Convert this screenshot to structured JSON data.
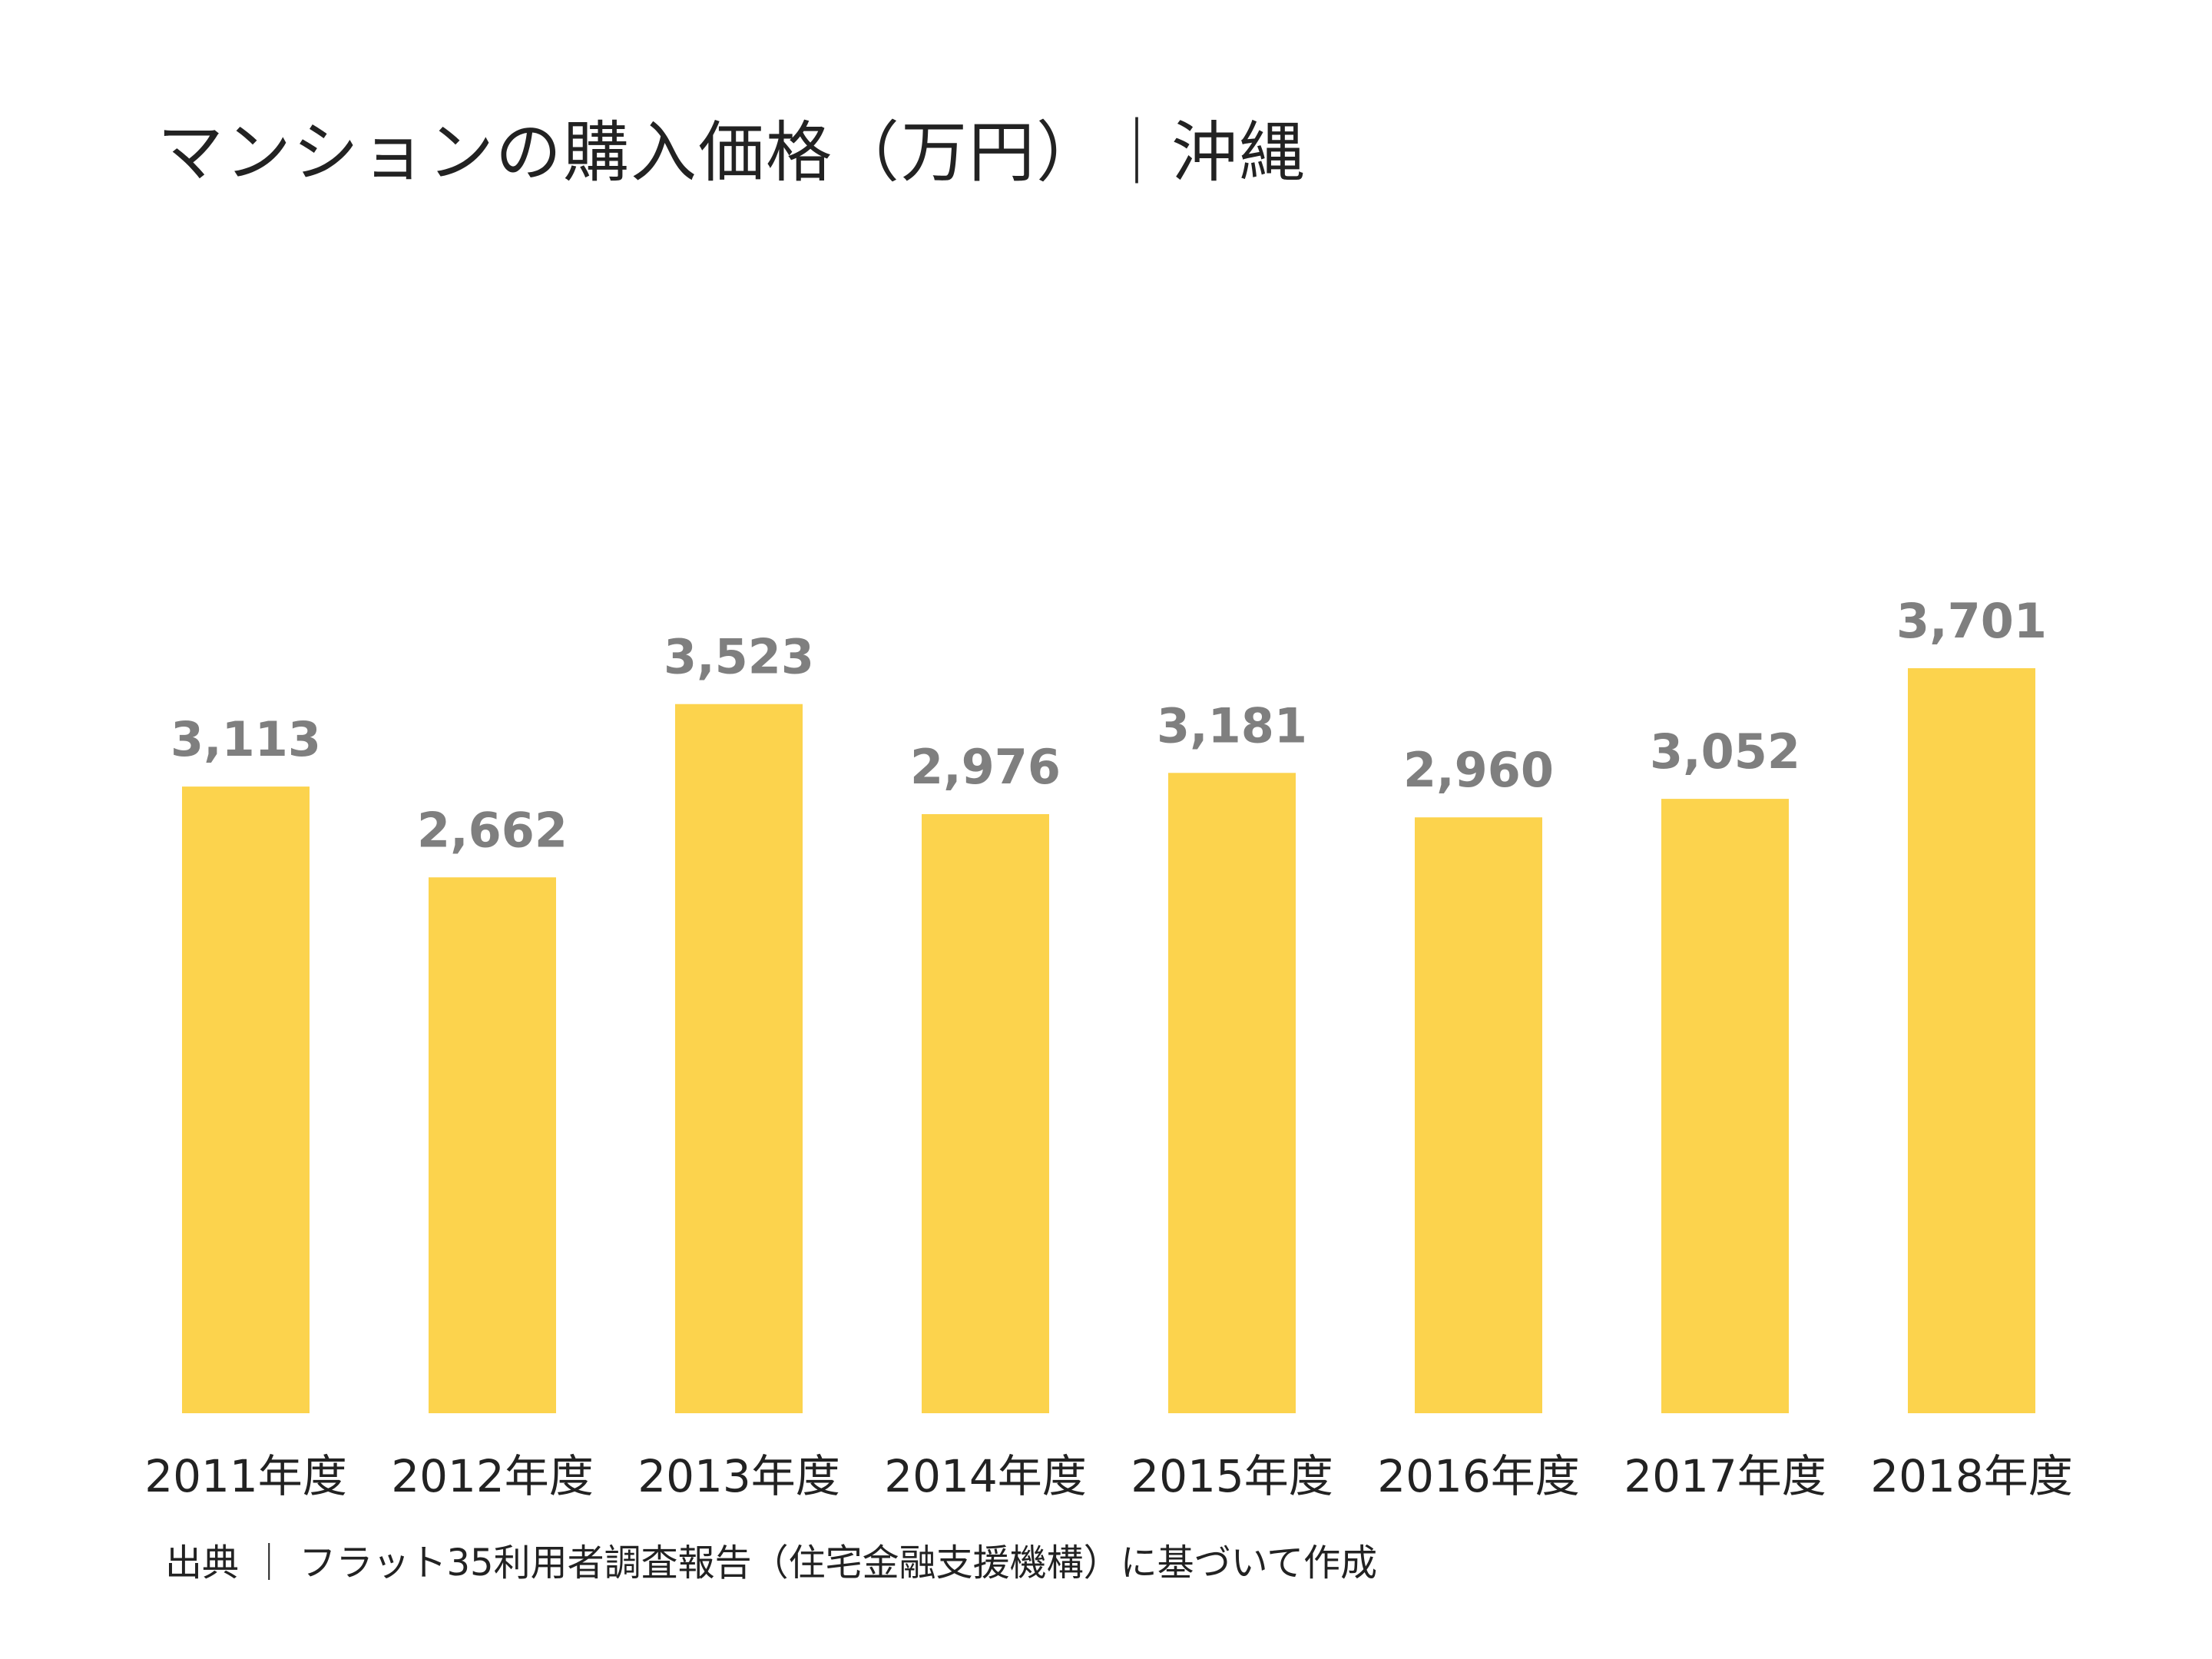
{
  "chart_data": {
    "type": "bar",
    "title": "マンションの購入価格（万円）｜沖縄",
    "categories": [
      "2011年度",
      "2012年度",
      "2013年度",
      "2014年度",
      "2015年度",
      "2016年度",
      "2017年度",
      "2018年度"
    ],
    "values": [
      3113,
      2662,
      3523,
      2976,
      3181,
      2960,
      3052,
      3701
    ],
    "value_labels": [
      "3,113",
      "2,662",
      "3,523",
      "2,976",
      "3,181",
      "2,960",
      "3,052",
      "3,701"
    ],
    "xlabel": "",
    "ylabel": "",
    "ylim": [
      0,
      3701
    ],
    "grid": false,
    "legend": "none",
    "colors": {
      "bar": "#FCD34D",
      "value_label": "#7F7F7F",
      "text": "#222222"
    }
  },
  "source": "出典 ｜ フラット35利用者調査報告（住宅金融支援機構）に基づいて作成"
}
